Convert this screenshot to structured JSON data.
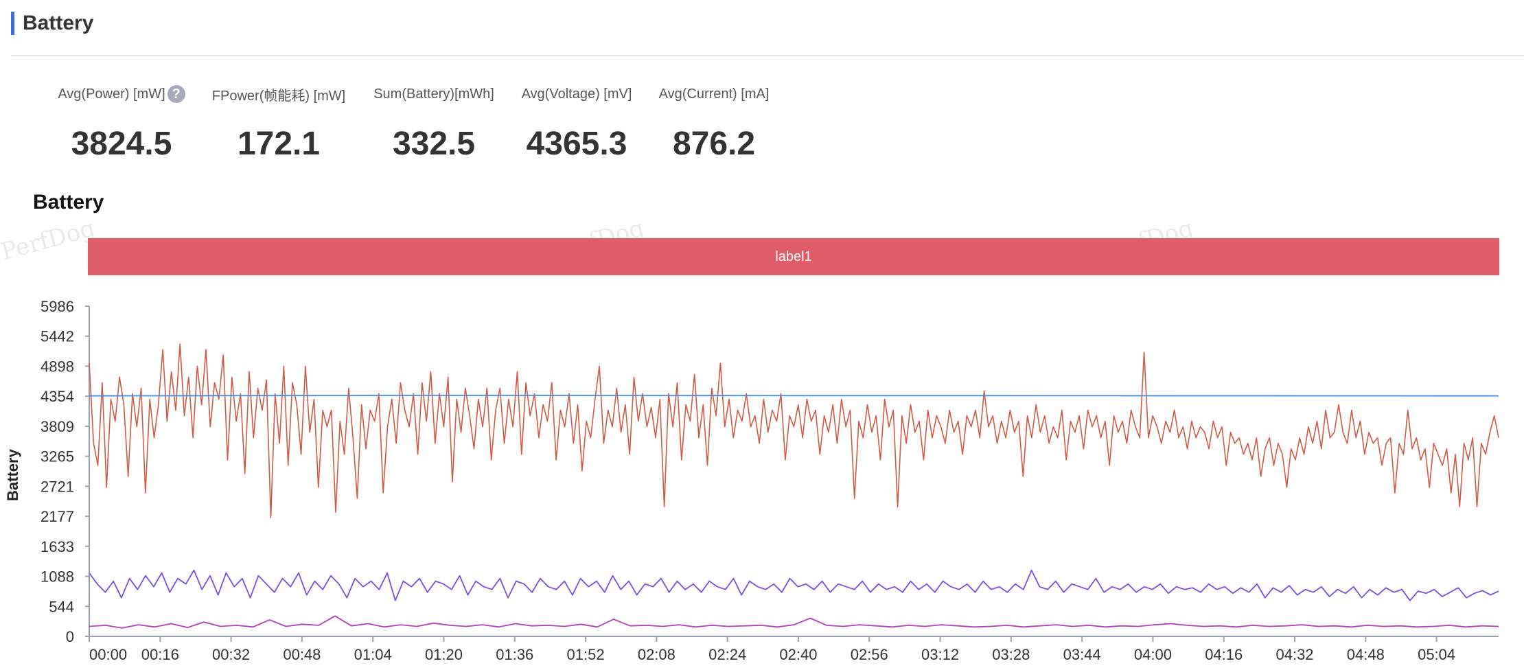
{
  "header": {
    "title": "Battery"
  },
  "metrics": [
    {
      "label": "Avg(Power) [mW]",
      "value": "3824.5",
      "has_help": true
    },
    {
      "label": "FPower(帧能耗) [mW]",
      "value": "172.1"
    },
    {
      "label": "Sum(Battery)[mWh]",
      "value": "332.5"
    },
    {
      "label": "Avg(Voltage) [mV]",
      "value": "4365.3"
    },
    {
      "label": "Avg(Current) [mA]",
      "value": "876.2"
    }
  ],
  "help_icon": {
    "glyph": "?",
    "icon": "question-circle-icon"
  },
  "chart": {
    "title": "Battery",
    "watermark": "PerfDog",
    "label_band": {
      "text": "label1",
      "color": "#e05c66"
    }
  },
  "chart_data": {
    "type": "line",
    "title": "Battery",
    "ylabel": "Battery",
    "xlabel": "",
    "ylim": [
      0,
      5986
    ],
    "yticks": [
      0,
      544,
      1088,
      1633,
      2177,
      2721,
      3265,
      3809,
      4354,
      4898,
      5442,
      5986
    ],
    "x_unit": "seconds",
    "xlim": [
      0,
      318
    ],
    "xticks": [
      {
        "t": 0,
        "label": "00:00"
      },
      {
        "t": 16,
        "label": "00:16"
      },
      {
        "t": 32,
        "label": "00:32"
      },
      {
        "t": 48,
        "label": "00:48"
      },
      {
        "t": 64,
        "label": "01:04"
      },
      {
        "t": 80,
        "label": "01:20"
      },
      {
        "t": 96,
        "label": "01:36"
      },
      {
        "t": 112,
        "label": "01:52"
      },
      {
        "t": 128,
        "label": "02:08"
      },
      {
        "t": 144,
        "label": "02:24"
      },
      {
        "t": 160,
        "label": "02:40"
      },
      {
        "t": 176,
        "label": "02:56"
      },
      {
        "t": 192,
        "label": "03:12"
      },
      {
        "t": 208,
        "label": "03:28"
      },
      {
        "t": 224,
        "label": "03:44"
      },
      {
        "t": 240,
        "label": "04:00"
      },
      {
        "t": 256,
        "label": "04:16"
      },
      {
        "t": 272,
        "label": "04:32"
      },
      {
        "t": 288,
        "label": "04:48"
      },
      {
        "t": 304,
        "label": "05:04"
      }
    ],
    "grid": false,
    "series": [
      {
        "color": "#cf5a45",
        "values": [
          4950,
          3500,
          3100,
          4600,
          2700,
          4300,
          3900,
          4700,
          4200,
          2900,
          4400,
          3800,
          4500,
          2600,
          4300,
          3600,
          4200,
          5200,
          3900,
          4800,
          4100,
          5300,
          4000,
          4700,
          3600,
          4900,
          4200,
          5200,
          3800,
          4600,
          4300,
          5100,
          3200,
          4700,
          3900,
          4400,
          2950,
          4800,
          3600,
          4500,
          4100,
          4650,
          2150,
          4400,
          3500,
          4900,
          3100,
          4600,
          4200,
          3300,
          4900,
          3700,
          4300,
          2700,
          4100,
          3800,
          4100,
          2250,
          3900,
          3300,
          4500,
          3600,
          2500,
          4200,
          3400,
          4100,
          3900,
          4400,
          2600,
          3800,
          4300,
          3500,
          4600,
          4100,
          3800,
          4400,
          3300,
          4600,
          3900,
          4800,
          3500,
          4400,
          3800,
          4700,
          2800,
          4300,
          3700,
          4500,
          4000,
          3400,
          4300,
          3800,
          4500,
          3200,
          4100,
          4500,
          3500,
          4300,
          3800,
          4800,
          3300,
          4600,
          4000,
          4400,
          3600,
          4200,
          3900,
          4600,
          3200,
          4100,
          3800,
          4400,
          3500,
          4200,
          3000,
          3900,
          3600,
          4300,
          4900,
          3500,
          4100,
          3800,
          4500,
          3700,
          4200,
          3300,
          4700,
          3900,
          4400,
          3800,
          4150,
          3600,
          4300,
          2350,
          4400,
          3800,
          4600,
          3200,
          4200,
          3900,
          4750,
          3600,
          4200,
          3100,
          4500,
          4000,
          4950,
          3800,
          4300,
          3600,
          4100,
          3900,
          4400,
          3800,
          4000,
          3500,
          4300,
          3700,
          4100,
          3900,
          4400,
          3200,
          4000,
          3800,
          4200,
          3600,
          4300,
          3900,
          4100,
          3300,
          4000,
          3700,
          4200,
          3500,
          4300,
          3800,
          4100,
          2500,
          3900,
          3600,
          4200,
          3700,
          4000,
          3200,
          4300,
          3800,
          4100,
          2350,
          4000,
          3500,
          4200,
          3700,
          3900,
          3200,
          4100,
          3600,
          4000,
          3800,
          3500,
          4100,
          3700,
          3900,
          3300,
          4000,
          3800,
          4100,
          3600,
          4450,
          3800,
          4000,
          3500,
          3900,
          3600,
          4100,
          3700,
          3900,
          2900,
          4000,
          3600,
          4200,
          3700,
          4000,
          3500,
          3800,
          3600,
          4100,
          3200,
          3900,
          3700,
          4000,
          3400,
          4100,
          3800,
          4000,
          3600,
          3900,
          3100,
          4000,
          3700,
          3900,
          3500,
          4100,
          3800,
          3600,
          5150,
          3600,
          4000,
          3800,
          3500,
          3900,
          3700,
          4100,
          3600,
          3800,
          3400,
          3900,
          3600,
          3800,
          3700,
          3400,
          3900,
          3600,
          3800,
          3100,
          3700,
          3500,
          3600,
          3300,
          3500,
          3200,
          3600,
          2900,
          3400,
          3600,
          3100,
          3500,
          3300,
          2700,
          3400,
          3200,
          3600,
          3300,
          3800,
          3500,
          3900,
          3400,
          4100,
          3600,
          3700,
          4200,
          3700,
          3500,
          4100,
          3600,
          3900,
          3300,
          3700,
          3500,
          3600,
          3100,
          3500,
          3600,
          2600,
          3500,
          3300,
          4100,
          3400,
          3600,
          3200,
          3400,
          2700,
          3500,
          3300,
          3100,
          3400,
          2600,
          3300,
          2350,
          3500,
          3200,
          3600,
          2350,
          3500,
          3300,
          3700,
          4000,
          3600
        ]
      },
      {
        "color": "#3d8fe8",
        "values": [
          4360,
          4362,
          4365,
          4366,
          4367,
          4368,
          4368,
          4368,
          4367,
          4366,
          4366,
          4365,
          4365,
          4364,
          4364,
          4363,
          4363,
          4362,
          4362,
          4361,
          4361,
          4360,
          4360
        ]
      },
      {
        "color": "#7a4ee0",
        "values": [
          1150,
          950,
          800,
          1000,
          700,
          1050,
          850,
          1100,
          900,
          1150,
          800,
          1050,
          950,
          1200,
          850,
          1100,
          750,
          1150,
          900,
          1050,
          700,
          1100,
          950,
          800,
          1050,
          900,
          1150,
          750,
          1000,
          850,
          1100,
          950,
          700,
          1050,
          900,
          1000,
          850,
          1150,
          650,
          1000,
          900,
          1050,
          800,
          1000,
          950,
          850,
          1100,
          750,
          1000,
          900,
          850,
          1050,
          700,
          1000,
          950,
          800,
          1050,
          900,
          850,
          1000,
          750,
          1050,
          900,
          1000,
          800,
          1100,
          850,
          1000,
          750,
          950,
          900,
          1050,
          800,
          1000,
          850,
          950,
          800,
          1000,
          900,
          850,
          1050,
          750,
          1000,
          900,
          850,
          950,
          800,
          1050,
          900,
          950,
          850,
          1000,
          800,
          950,
          900,
          850,
          1000,
          800,
          950,
          850,
          900,
          800,
          1000,
          850,
          950,
          800,
          1000,
          900,
          850,
          950,
          800,
          1000,
          850,
          900,
          800,
          950,
          850,
          1200,
          900,
          850,
          1000,
          800,
          950,
          900,
          850,
          1050,
          800,
          900,
          850,
          950,
          800,
          900,
          850,
          950,
          780,
          900,
          850,
          880,
          800,
          950,
          850,
          900,
          780,
          880,
          800,
          950,
          700,
          880,
          800,
          920,
          750,
          850,
          800,
          900,
          720,
          850,
          780,
          900,
          700,
          850,
          750,
          880,
          800,
          850,
          650,
          820,
          780,
          850,
          720,
          800,
          880,
          700,
          780,
          830,
          750,
          820
        ]
      },
      {
        "color": "#b03fb8",
        "values": [
          180,
          200,
          150,
          210,
          170,
          230,
          160,
          260,
          180,
          200,
          170,
          300,
          180,
          220,
          200,
          370,
          190,
          230,
          170,
          210,
          180,
          240,
          200,
          180,
          210,
          170,
          230,
          190,
          200,
          180,
          220,
          170,
          310,
          190,
          200,
          180,
          210,
          170,
          200,
          180,
          190,
          200,
          170,
          210,
          330,
          200,
          180,
          210,
          190,
          170,
          200,
          180,
          210,
          190,
          170,
          180,
          200,
          170,
          190,
          210,
          180,
          200,
          170,
          190,
          180,
          210,
          230,
          200,
          180,
          190,
          170,
          200,
          180,
          190,
          210,
          180,
          190,
          170,
          200,
          180,
          190,
          170,
          180,
          200,
          170,
          190,
          180
        ]
      }
    ]
  }
}
